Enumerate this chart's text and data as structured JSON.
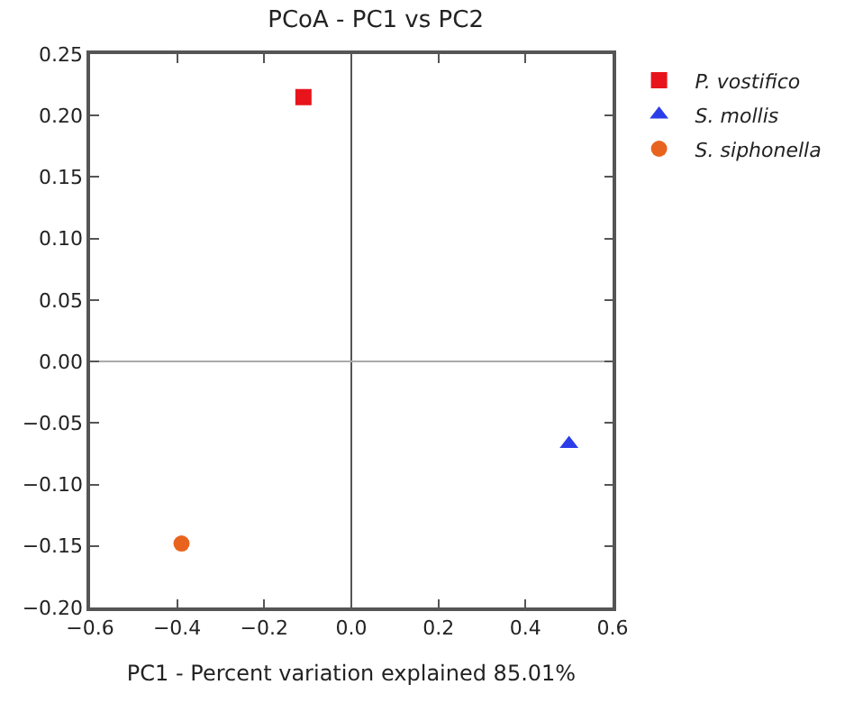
{
  "chart_data": {
    "type": "scatter",
    "title": "PCoA - PC1 vs PC2",
    "xlabel": "PC1 - Percent variation explained 85.01%",
    "series": [
      {
        "name": "P. vostifico",
        "color": "#e8141c",
        "marker": "square",
        "x": [
          -0.11
        ],
        "values": [
          0.215
        ]
      },
      {
        "name": "S. mollis",
        "color": "#2b3de8",
        "marker": "triangle",
        "x": [
          0.5
        ],
        "values": [
          -0.067
        ]
      },
      {
        "name": "S. siphonella",
        "color": "#e8641e",
        "marker": "circle",
        "x": [
          -0.39
        ],
        "values": [
          -0.148
        ]
      }
    ],
    "xlim": [
      -0.6,
      0.6
    ],
    "xticks": [
      {
        "value": -0.6,
        "label": "−0.6"
      },
      {
        "value": -0.4,
        "label": "−0.4"
      },
      {
        "value": -0.2,
        "label": "−0.2"
      },
      {
        "value": 0,
        "label": "0.0"
      },
      0.2,
      0.4,
      0.6
    ],
    "ylim": [
      -0.2,
      0.25
    ],
    "yticks": [
      {
        "value": -0.2,
        "label": "−0.20"
      },
      {
        "value": -0.15,
        "label": "−0.15"
      },
      {
        "value": -0.1,
        "label": "−0.10"
      },
      {
        "value": -0.05,
        "label": "−0.05"
      },
      {
        "value": 0,
        "label": "0.00"
      },
      0.05,
      {
        "value": 0.1,
        "label": "0.10"
      },
      0.15,
      {
        "value": 0.2,
        "label": "0.20"
      },
      0.25
    ],
    "ref_lines": [
      {
        "axis": "x",
        "value": 0,
        "color": "#555555"
      },
      {
        "axis": "y",
        "value": 0,
        "color": "#aaaaaa"
      }
    ],
    "legend": "top right",
    "grid": false
  }
}
